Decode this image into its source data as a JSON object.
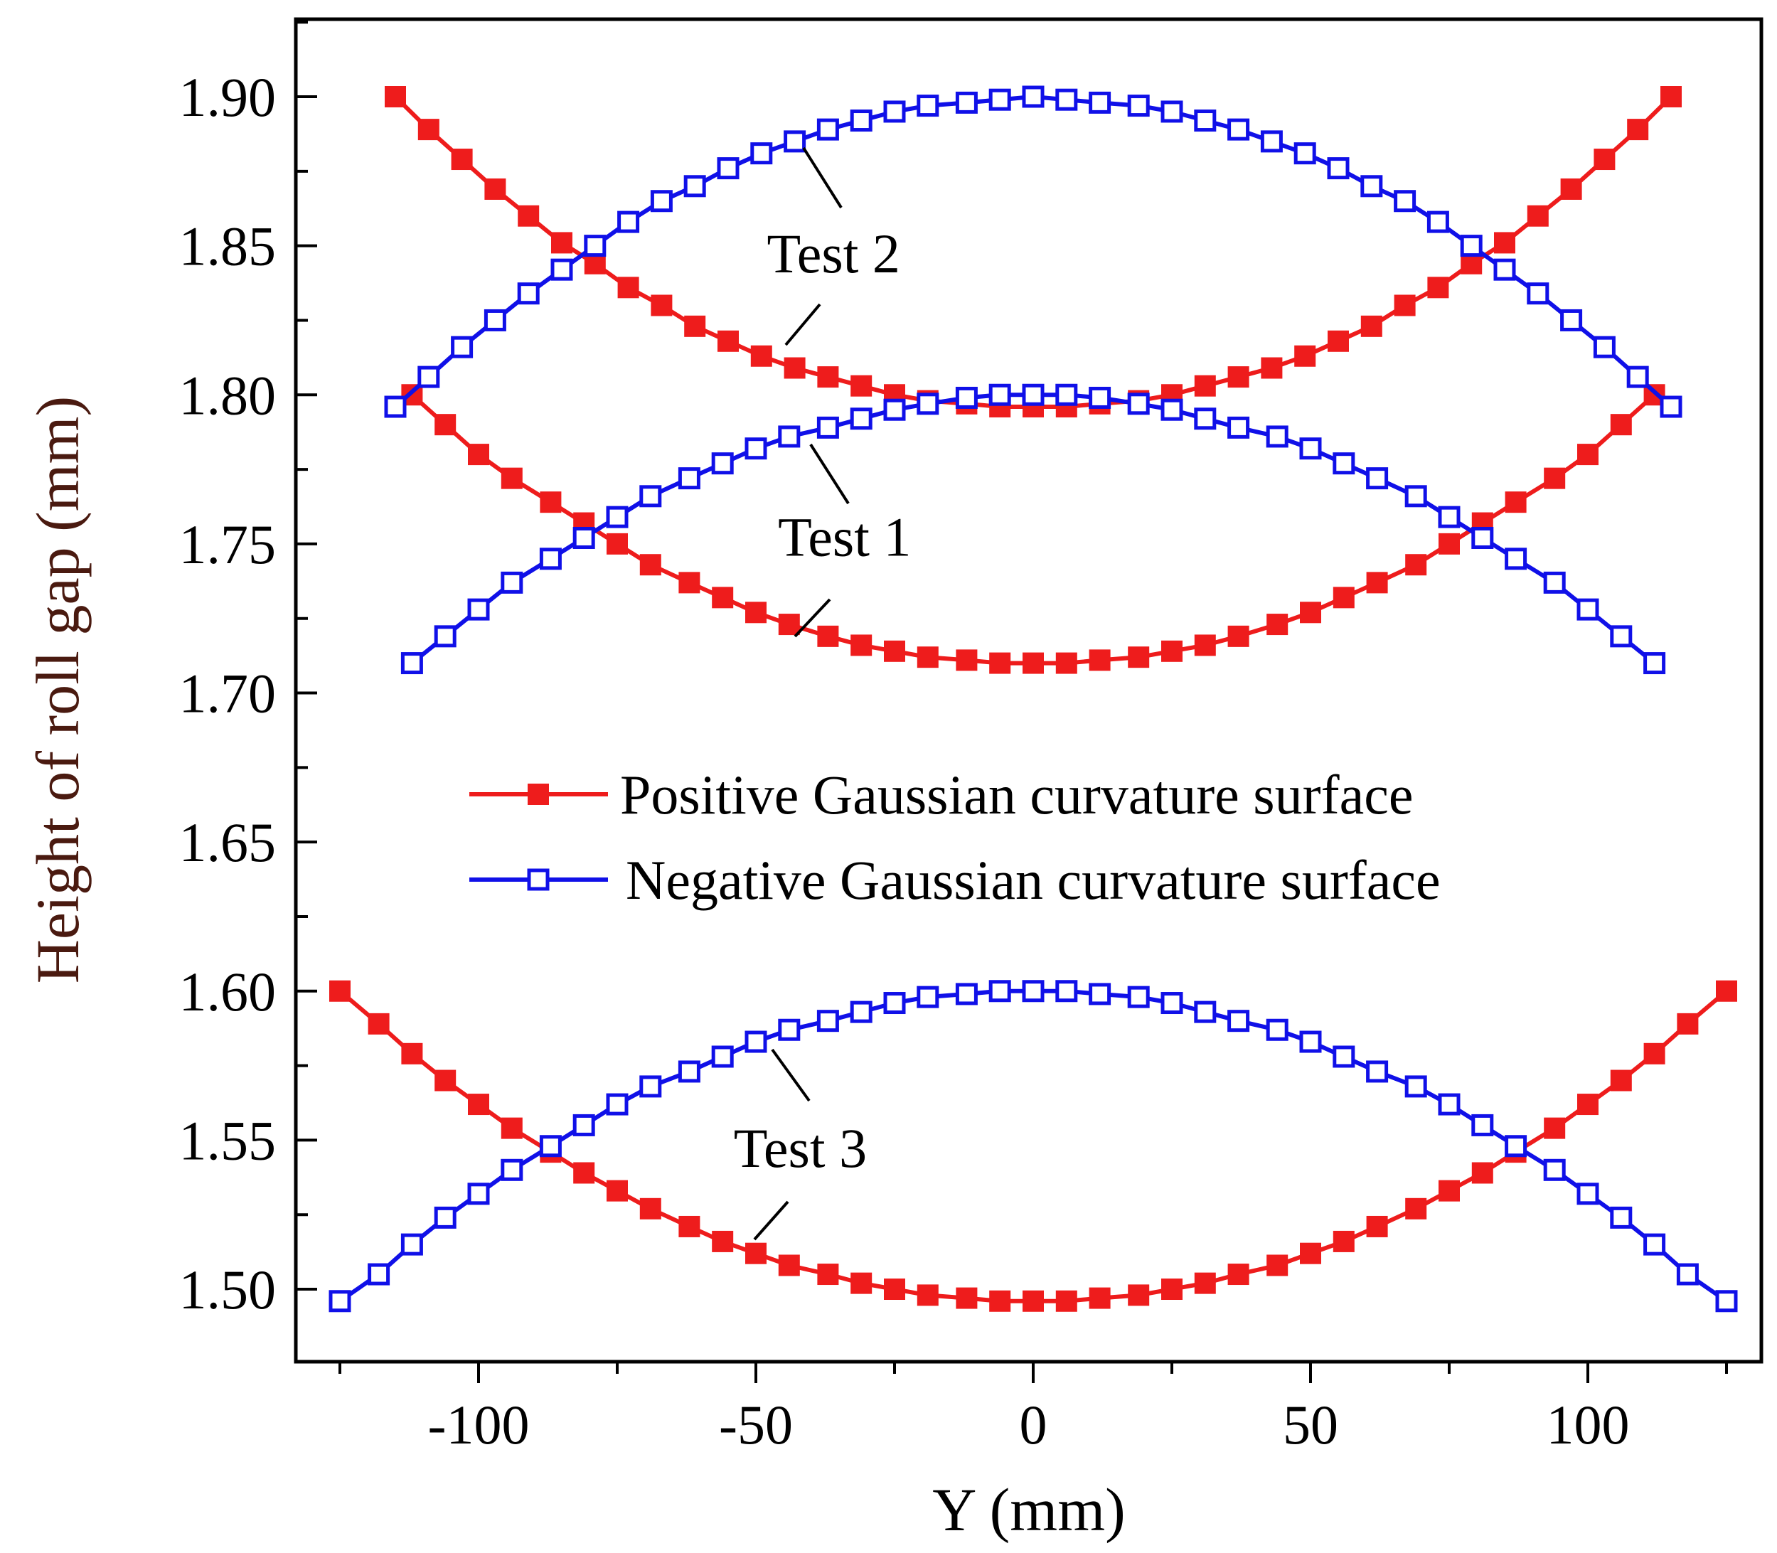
{
  "chart_data": {
    "type": "line",
    "title": "",
    "xlabel": "Y (mm)",
    "ylabel": "Height of roll gap (mm)",
    "xlim": [
      -135,
      135
    ],
    "ylim": [
      1.475,
      1.925
    ],
    "x_ticks": [
      -100,
      -50,
      0,
      50,
      100
    ],
    "x_tick_labels": [
      "-100",
      "-50",
      "0",
      "50",
      "100"
    ],
    "y_ticks": [
      1.5,
      1.55,
      1.6,
      1.65,
      1.7,
      1.75,
      1.8,
      1.85,
      1.9
    ],
    "y_tick_labels": [
      "1.50",
      "1.55",
      "1.60",
      "1.65",
      "1.70",
      "1.75",
      "1.80",
      "1.85",
      "1.90"
    ],
    "grid": false,
    "legend_position": "center",
    "legend": [
      {
        "label": "Positive Gaussian curvature surface",
        "color": "#ee1c1c",
        "marker": "filled-square"
      },
      {
        "label": "Negative Gaussian curvature surface",
        "color": "#1010e8",
        "marker": "open-square"
      }
    ],
    "annotations": [
      {
        "text": "Test 2",
        "x": -36,
        "y": 1.8475
      },
      {
        "text": "Test 1",
        "x": -34,
        "y": 1.7525
      },
      {
        "text": "Test 3",
        "x": -42,
        "y": 1.5475
      }
    ],
    "series": [
      {
        "name": "Positive Gaussian curvature surface (Test 2)",
        "role": "positive",
        "x": [
          -115,
          -109,
          -103,
          -97,
          -91,
          -85,
          -79,
          -73,
          -67,
          -61,
          -55,
          -49,
          -43,
          -37,
          -31,
          -25,
          -19,
          -12,
          -6,
          0,
          6,
          12,
          19,
          25,
          31,
          37,
          43,
          49,
          55,
          61,
          67,
          73,
          79,
          85,
          91,
          97,
          103,
          109,
          115
        ],
        "y": [
          1.9,
          1.889,
          1.879,
          1.869,
          1.86,
          1.851,
          1.844,
          1.836,
          1.83,
          1.823,
          1.818,
          1.813,
          1.809,
          1.806,
          1.803,
          1.8,
          1.798,
          1.797,
          1.796,
          1.796,
          1.796,
          1.797,
          1.798,
          1.8,
          1.803,
          1.806,
          1.809,
          1.813,
          1.818,
          1.823,
          1.83,
          1.836,
          1.844,
          1.851,
          1.86,
          1.869,
          1.879,
          1.889,
          1.9
        ]
      },
      {
        "name": "Negative Gaussian curvature surface (Test 2)",
        "role": "negative",
        "x": [
          -115,
          -109,
          -103,
          -97,
          -91,
          -85,
          -79,
          -73,
          -67,
          -61,
          -55,
          -49,
          -43,
          -37,
          -31,
          -25,
          -19,
          -12,
          -6,
          0,
          6,
          12,
          19,
          25,
          31,
          37,
          43,
          49,
          55,
          61,
          67,
          73,
          79,
          85,
          91,
          97,
          103,
          109,
          115
        ],
        "y": [
          1.796,
          1.806,
          1.816,
          1.825,
          1.834,
          1.842,
          1.85,
          1.858,
          1.865,
          1.87,
          1.876,
          1.881,
          1.885,
          1.889,
          1.892,
          1.895,
          1.897,
          1.898,
          1.899,
          1.9,
          1.899,
          1.898,
          1.897,
          1.895,
          1.892,
          1.889,
          1.885,
          1.881,
          1.876,
          1.87,
          1.865,
          1.858,
          1.85,
          1.842,
          1.834,
          1.825,
          1.816,
          1.806,
          1.796
        ]
      },
      {
        "name": "Positive Gaussian curvature surface (Test 1)",
        "role": "positive",
        "x": [
          -112,
          -106,
          -100,
          -94,
          -87,
          -81,
          -75,
          -69,
          -62,
          -56,
          -50,
          -44,
          -37,
          -31,
          -25,
          -19,
          -12,
          -6,
          0,
          6,
          12,
          19,
          25,
          31,
          37,
          44,
          50,
          56,
          62,
          69,
          75,
          81,
          87,
          94,
          100,
          106,
          112
        ],
        "y": [
          1.8,
          1.79,
          1.78,
          1.772,
          1.764,
          1.757,
          1.75,
          1.743,
          1.737,
          1.732,
          1.727,
          1.723,
          1.719,
          1.716,
          1.714,
          1.712,
          1.711,
          1.71,
          1.71,
          1.71,
          1.711,
          1.712,
          1.714,
          1.716,
          1.719,
          1.723,
          1.727,
          1.732,
          1.737,
          1.743,
          1.75,
          1.757,
          1.764,
          1.772,
          1.78,
          1.79,
          1.8
        ]
      },
      {
        "name": "Negative Gaussian curvature surface (Test 1)",
        "role": "negative",
        "x": [
          -112,
          -106,
          -100,
          -94,
          -87,
          -81,
          -75,
          -69,
          -62,
          -56,
          -50,
          -44,
          -37,
          -31,
          -25,
          -19,
          -12,
          -6,
          0,
          6,
          12,
          19,
          25,
          31,
          37,
          44,
          50,
          56,
          62,
          69,
          75,
          81,
          87,
          94,
          100,
          106,
          112
        ],
        "y": [
          1.71,
          1.719,
          1.728,
          1.737,
          1.745,
          1.752,
          1.759,
          1.766,
          1.772,
          1.777,
          1.782,
          1.786,
          1.789,
          1.792,
          1.795,
          1.797,
          1.799,
          1.8,
          1.8,
          1.8,
          1.799,
          1.797,
          1.795,
          1.792,
          1.789,
          1.786,
          1.782,
          1.777,
          1.772,
          1.766,
          1.759,
          1.752,
          1.745,
          1.737,
          1.728,
          1.719,
          1.71
        ]
      },
      {
        "name": "Positive Gaussian curvature surface (Test 3)",
        "role": "positive",
        "x": [
          -125,
          -118,
          -112,
          -106,
          -100,
          -94,
          -87,
          -81,
          -75,
          -69,
          -62,
          -56,
          -50,
          -44,
          -37,
          -31,
          -25,
          -19,
          -12,
          -6,
          0,
          6,
          12,
          19,
          25,
          31,
          37,
          44,
          50,
          56,
          62,
          69,
          75,
          81,
          87,
          94,
          100,
          106,
          112,
          118,
          125
        ],
        "y": [
          1.6,
          1.589,
          1.579,
          1.57,
          1.562,
          1.554,
          1.546,
          1.539,
          1.533,
          1.527,
          1.521,
          1.516,
          1.512,
          1.508,
          1.505,
          1.502,
          1.5,
          1.498,
          1.497,
          1.496,
          1.496,
          1.496,
          1.497,
          1.498,
          1.5,
          1.502,
          1.505,
          1.508,
          1.512,
          1.516,
          1.521,
          1.527,
          1.533,
          1.539,
          1.546,
          1.554,
          1.562,
          1.57,
          1.579,
          1.589,
          1.6
        ]
      },
      {
        "name": "Negative Gaussian curvature surface (Test 3)",
        "role": "negative",
        "x": [
          -125,
          -118,
          -112,
          -106,
          -100,
          -94,
          -87,
          -81,
          -75,
          -69,
          -62,
          -56,
          -50,
          -44,
          -37,
          -31,
          -25,
          -19,
          -12,
          -6,
          0,
          6,
          12,
          19,
          25,
          31,
          37,
          44,
          50,
          56,
          62,
          69,
          75,
          81,
          87,
          94,
          100,
          106,
          112,
          118,
          125
        ],
        "y": [
          1.496,
          1.505,
          1.515,
          1.524,
          1.532,
          1.54,
          1.548,
          1.555,
          1.562,
          1.568,
          1.573,
          1.578,
          1.583,
          1.587,
          1.59,
          1.593,
          1.596,
          1.598,
          1.599,
          1.6,
          1.6,
          1.6,
          1.599,
          1.598,
          1.596,
          1.593,
          1.59,
          1.587,
          1.583,
          1.578,
          1.573,
          1.568,
          1.562,
          1.555,
          1.548,
          1.54,
          1.532,
          1.524,
          1.515,
          1.505,
          1.496
        ]
      }
    ]
  }
}
